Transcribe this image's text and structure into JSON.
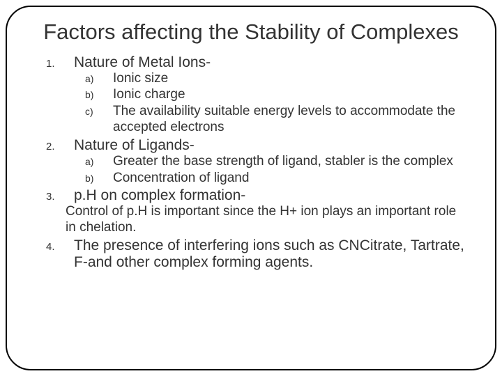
{
  "title": "Factors affecting the Stability of Complexes",
  "items": [
    {
      "num": "1.",
      "label": "Nature of Metal Ions-",
      "sub": [
        {
          "letter": "a)",
          "text": "Ionic size"
        },
        {
          "letter": "b)",
          "text": "Ionic charge"
        },
        {
          "letter": "c)",
          "text": "The availability suitable energy levels to accommodate the accepted electrons"
        }
      ]
    },
    {
      "num": "2.",
      "label": "Nature of Ligands-",
      "sub": [
        {
          "letter": "a)",
          "text": "Greater the base strength of ligand, stabler is the complex"
        },
        {
          "letter": "b)",
          "text": "Concentration of ligand"
        }
      ]
    },
    {
      "num": "3.",
      "label": "p.H on complex formation-",
      "body": "Control of p.H is important since the H+ ion plays an important role in chelation."
    },
    {
      "num": "4.",
      "label": "The presence of interfering ions such as CNCitrate, Tartrate, F-and other complex forming agents."
    }
  ],
  "style": {
    "background_color": "#ffffff",
    "border_color": "#000000",
    "border_radius": 36,
    "title_fontsize": 31,
    "outer_num_fontsize": 15,
    "outer_label_fontsize": 21,
    "inner_letter_fontsize": 14,
    "inner_text_fontsize": 19,
    "text_color": "#333333"
  }
}
